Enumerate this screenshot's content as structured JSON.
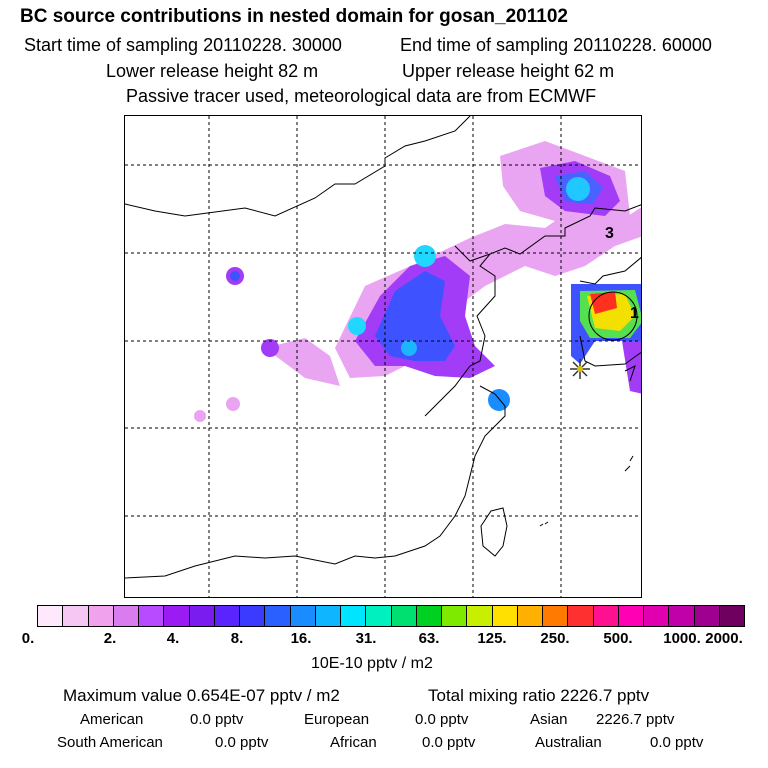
{
  "header": {
    "title": "BC  source contributions in nested domain for gosan_201102",
    "start": "Start time of sampling 20110228. 30000",
    "end": "End time of sampling 20110228. 60000",
    "lower": "Lower release height   82 m",
    "upper": "Upper release height   62 m",
    "note": "Passive tracer used, meteorological data are from ECMWF"
  },
  "map": {
    "markers": [
      "3",
      "1"
    ],
    "receptor_icon": "star-receptor-icon"
  },
  "colorbar": {
    "colors": [
      "#fde9fb",
      "#f7c7f3",
      "#f0a2ec",
      "#d97cf0",
      "#b84bff",
      "#9b1cf3",
      "#7a1cf0",
      "#5a24ff",
      "#3b3bff",
      "#2a60ff",
      "#1a8cff",
      "#10b5ff",
      "#00e5ff",
      "#00f0c0",
      "#00e070",
      "#00d020",
      "#7dea00",
      "#c8ef00",
      "#ffe000",
      "#ffb000",
      "#ff7a00",
      "#ff3030",
      "#ff1090",
      "#ff00b4",
      "#e000b0",
      "#c000a8",
      "#a00090",
      "#700060"
    ],
    "labels": [
      "0.",
      "2.",
      "4.",
      "8.",
      "16.",
      "31.",
      "63.",
      "125.",
      "250.",
      "500.",
      "1000.",
      "2000."
    ],
    "unit": "10E-10 pptv / m2"
  },
  "footer": {
    "max": "Maximum value  0.654E-07 pptv / m2",
    "total": "Total mixing ratio      2226.7 pptv",
    "american_label": "American",
    "american_val": "0.0 pptv",
    "european_label": "European",
    "european_val": "0.0 pptv",
    "asian_label": "Asian",
    "asian_val": "2226.7 pptv",
    "south_american_label": "South American",
    "south_american_val": "0.0 pptv",
    "african_label": "African",
    "african_val": "0.0 pptv",
    "australian_label": "Australian",
    "australian_val": "0.0 pptv"
  }
}
